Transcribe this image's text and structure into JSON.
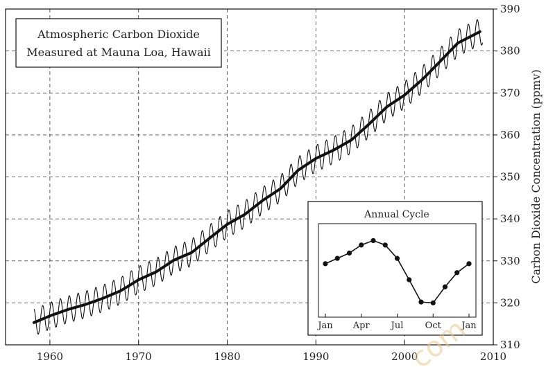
{
  "chart_data": [
    {
      "type": "line",
      "title": "Atmospheric Carbon Dioxide Measured at Mauna Loa, Hawaii",
      "title_lines": [
        "Atmospheric Carbon Dioxide",
        "Measured at Mauna Loa, Hawaii"
      ],
      "xlabel": "",
      "ylabel": "Carbon Dioxide Concentration (ppmv)",
      "xlim": [
        1955,
        2010
      ],
      "ylim": [
        310,
        390
      ],
      "xticks": [
        "1960",
        "1970",
        "1980",
        "1990",
        "2000",
        "2010"
      ],
      "yticks": [
        "310",
        "320",
        "330",
        "340",
        "350",
        "360",
        "370",
        "380",
        "390"
      ],
      "y_axis_side": "right",
      "grid": true,
      "grid_style": "dashed",
      "series": [
        {
          "role": "annual-average",
          "x": [
            1958.2,
            1960,
            1962,
            1964,
            1966,
            1968,
            1970,
            1972,
            1974,
            1976,
            1978,
            1980,
            1982,
            1984,
            1986,
            1988,
            1990,
            1992,
            1994,
            1996,
            1998,
            2000,
            2002,
            2004,
            2006,
            2008.5
          ],
          "y": [
            315.3,
            316.9,
            318.4,
            319.6,
            321.1,
            322.9,
            325.5,
            327.4,
            330.2,
            332.0,
            335.4,
            338.7,
            341.1,
            344.4,
            347.2,
            351.6,
            354.4,
            356.4,
            358.8,
            362.6,
            366.7,
            369.5,
            373.2,
            377.5,
            381.9,
            384.6
          ]
        },
        {
          "role": "monthly-measurements",
          "seasonal_amplitude_ppmv": 3.2,
          "x_range": [
            1958.2,
            2008.8
          ]
        }
      ]
    },
    {
      "type": "line",
      "title": "Annual Cycle",
      "categories": [
        "Jan",
        "Feb",
        "Mar",
        "Apr",
        "May",
        "Jun",
        "Jul",
        "Aug",
        "Sep",
        "Oct",
        "Nov",
        "Dec",
        "Jan"
      ],
      "tick_labels": [
        "Jan",
        "Apr",
        "Jul",
        "Oct",
        "Jan"
      ],
      "values": [
        0.0,
        0.6,
        1.2,
        2.1,
        2.6,
        2.1,
        0.6,
        -1.8,
        -4.3,
        -4.4,
        -2.6,
        -1.0,
        0.0
      ],
      "ylim": [
        -6.0,
        4.5
      ],
      "marker": "circle"
    }
  ],
  "watermark": "com"
}
